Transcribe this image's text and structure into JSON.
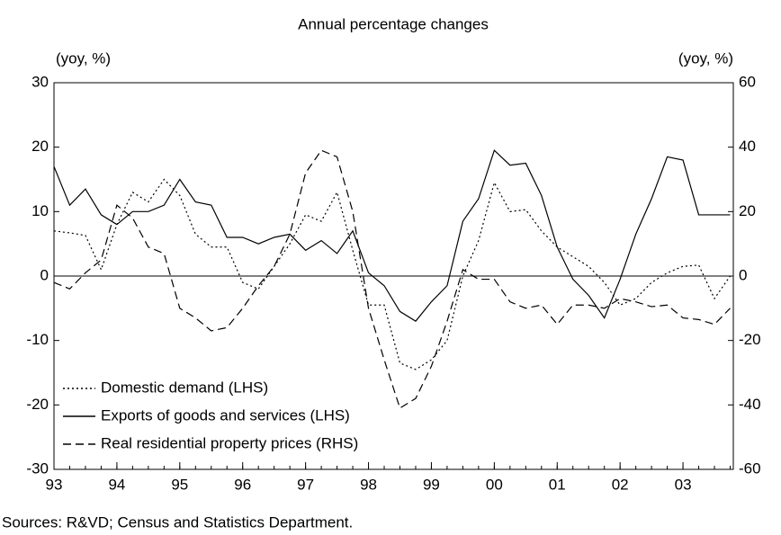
{
  "chart_data": {
    "type": "line",
    "title": "Annual percentage changes",
    "ylabel": "(yoy, %)",
    "y2label": "(yoy, %)",
    "source": "Sources: R&VD; Census and Statistics Department.",
    "x": [
      1993,
      1993.25,
      1993.5,
      1993.75,
      1994,
      1994.25,
      1994.5,
      1994.75,
      1995,
      1995.25,
      1995.5,
      1995.75,
      1996,
      1996.25,
      1996.5,
      1996.75,
      1997,
      1997.25,
      1997.5,
      1997.75,
      1998,
      1998.25,
      1998.5,
      1998.75,
      1999,
      1999.25,
      1999.5,
      1999.75,
      2000,
      2000.25,
      2000.5,
      2000.75,
      2001,
      2001.25,
      2001.5,
      2001.75,
      2002,
      2002.25,
      2002.5,
      2002.75,
      2003,
      2003.25,
      2003.5,
      2003.75
    ],
    "xlim": [
      1993,
      2003.8
    ],
    "xticks": [
      {
        "value": 1993,
        "label": "93"
      },
      {
        "value": 1994,
        "label": "94"
      },
      {
        "value": 1995,
        "label": "95"
      },
      {
        "value": 1996,
        "label": "96"
      },
      {
        "value": 1997,
        "label": "97"
      },
      {
        "value": 1998,
        "label": "98"
      },
      {
        "value": 1999,
        "label": "99"
      },
      {
        "value": 2000,
        "label": "00"
      },
      {
        "value": 2001,
        "label": "01"
      },
      {
        "value": 2002,
        "label": "02"
      },
      {
        "value": 2003,
        "label": "03"
      }
    ],
    "ylim": [
      -30,
      30
    ],
    "yticks": [
      -30,
      -20,
      -10,
      0,
      10,
      20,
      30
    ],
    "y2lim": [
      -60,
      60
    ],
    "y2ticks": [
      -60,
      -40,
      -20,
      0,
      20,
      40,
      60
    ],
    "legend": "lower left",
    "series": [
      {
        "name": "Domestic demand (LHS)",
        "color": "#000000",
        "dash": "dotted",
        "values": [
          7,
          6.7,
          6.3,
          1,
          8,
          13,
          11.5,
          15,
          12.5,
          6.5,
          4.5,
          4.5,
          -1,
          -2,
          1.5,
          5,
          9.5,
          8.5,
          13,
          4,
          -4.5,
          -4.5,
          -13.5,
          -14.5,
          -13,
          -10,
          0,
          5.5,
          14.5,
          10,
          10.3,
          7,
          4.5,
          3,
          1.5,
          -1,
          -4.5,
          -3.5,
          -1,
          0.5,
          1.5,
          1.7,
          -3.5,
          0
        ]
      },
      {
        "name": "Exports of goods and services (LHS)",
        "color": "#000000",
        "dash": "solid",
        "values": [
          17,
          11,
          13.5,
          9.5,
          8,
          10,
          10,
          11,
          15,
          11.5,
          11,
          6,
          6,
          5,
          6,
          6.5,
          4,
          5.5,
          3.5,
          7,
          0.5,
          -1.5,
          -5.5,
          -7,
          -4,
          -1.5,
          8.5,
          12,
          19.5,
          17.2,
          17.5,
          12.5,
          4.5,
          -0.5,
          -3,
          -6.5,
          -0.5,
          6.5,
          12,
          18.5,
          18,
          9.5,
          9.5,
          9.5
        ]
      },
      {
        "name": "Real residential property prices (RHS)",
        "color": "#000000",
        "dash": "dashed",
        "axis": "y2",
        "values": [
          -2,
          -4,
          1,
          5,
          22,
          18,
          9,
          7,
          -10,
          -13,
          -17,
          -16,
          -10,
          -3,
          3,
          13,
          32,
          39,
          37,
          20,
          -10,
          -26,
          -41,
          -38,
          -28,
          -14,
          2,
          -1,
          -1,
          -8,
          -10,
          -9,
          -15,
          -9,
          -9,
          -10,
          -7,
          -8,
          -9.5,
          -9,
          -13,
          -13.5,
          -15,
          -10
        ]
      }
    ]
  }
}
